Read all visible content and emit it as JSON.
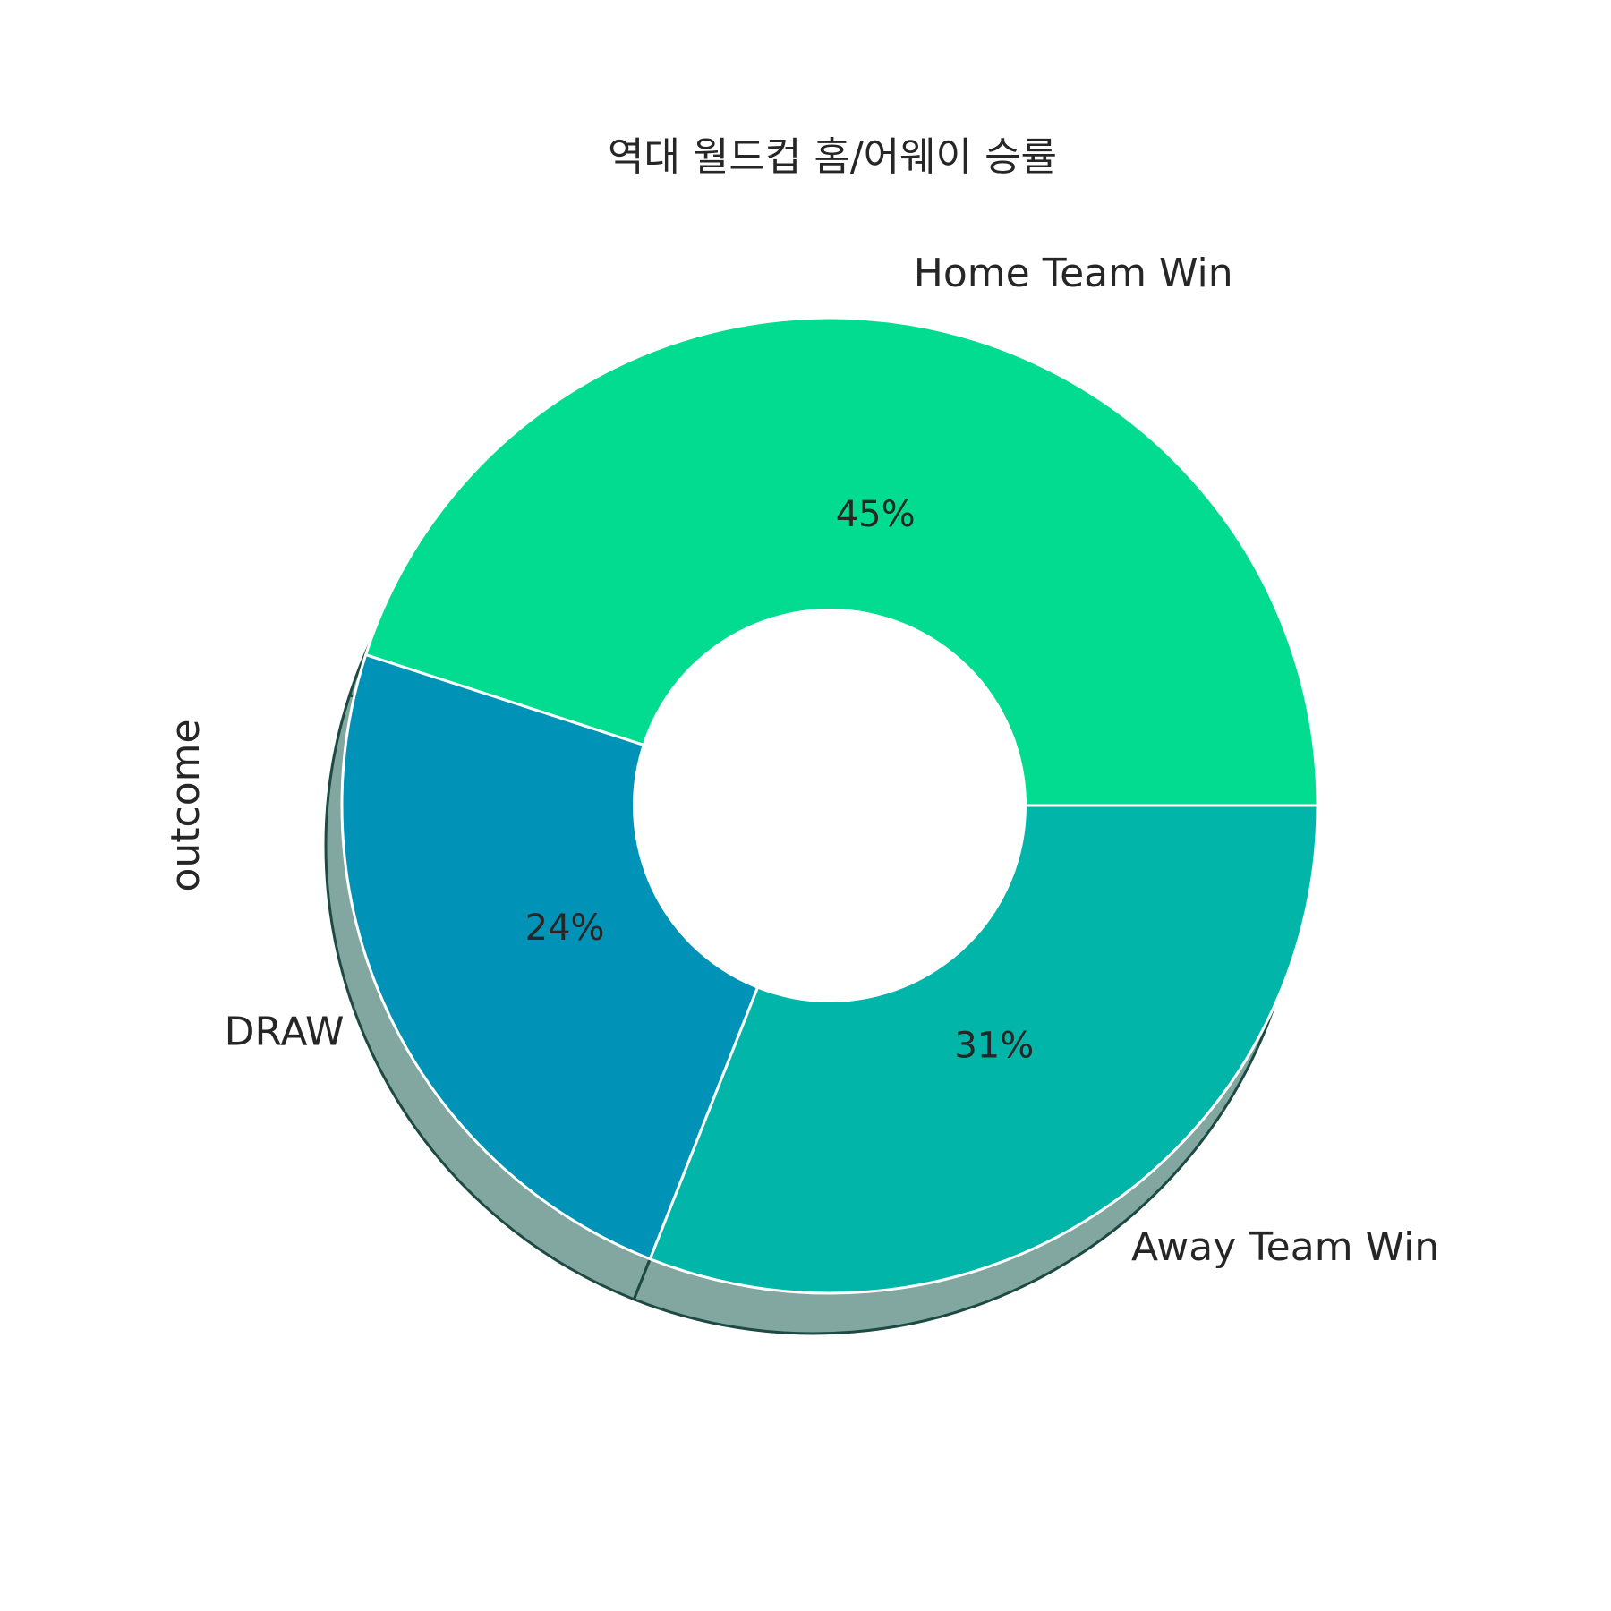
{
  "chart_data": {
    "type": "pie",
    "title": "역대 월드컵 홈/어웨이 승률",
    "ylabel": "outcome",
    "donut": true,
    "shadow": true,
    "categories": [
      "Home Team Win",
      "DRAW",
      "Away Team Win"
    ],
    "values": [
      45,
      24,
      31
    ],
    "value_labels": [
      "45%",
      "24%",
      "31%"
    ],
    "colors": [
      "#02DC91",
      "#0192B7",
      "#01B6A8"
    ],
    "start_angle_deg": 0,
    "direction": "counterclockwise"
  }
}
